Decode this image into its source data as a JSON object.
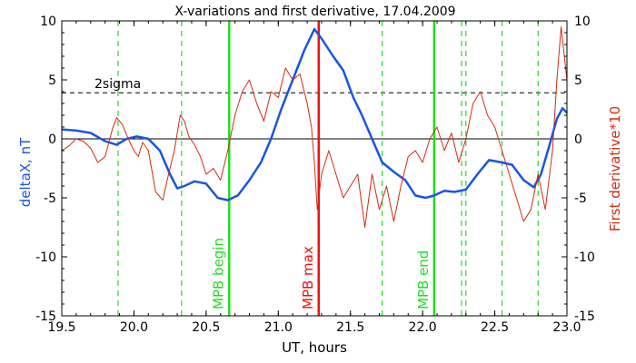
{
  "chart_data": {
    "type": "line",
    "title": "X-variations and first derivative, 17.04.2009",
    "xlabel": "UT, hours",
    "ylabel_left": "deltaX, nT",
    "ylabel_right": "First derivative*10",
    "xlim": [
      19.5,
      23.0
    ],
    "ylim": [
      -15,
      10
    ],
    "x_ticks": [
      "19.5",
      "20.0",
      "20.5",
      "21.0",
      "21.5",
      "22.0",
      "22.5",
      "23.0"
    ],
    "y_ticks_left": [
      "10",
      "5",
      "0",
      "-5",
      "-10",
      "-15"
    ],
    "y_ticks_right": [
      "10",
      "5",
      "0",
      "-5",
      "-10",
      "-15"
    ],
    "sigma_label": "2sigma",
    "sigma_level": 3.9,
    "colors": {
      "deltaX": "#1a55e0",
      "derivative": "#d42a10",
      "markers": "#22dd22",
      "mpb_max": "#ee1111"
    },
    "series": [
      {
        "name": "deltaX, nT",
        "x": [
          19.5,
          19.6,
          19.7,
          19.8,
          19.88,
          19.95,
          20.02,
          20.1,
          20.18,
          20.25,
          20.3,
          20.35,
          20.42,
          20.5,
          20.58,
          20.65,
          20.72,
          20.8,
          20.88,
          20.95,
          21.02,
          21.1,
          21.18,
          21.25,
          21.3,
          21.38,
          21.45,
          21.52,
          21.58,
          21.65,
          21.72,
          21.8,
          21.88,
          21.95,
          22.02,
          22.08,
          22.15,
          22.22,
          22.3,
          22.38,
          22.46,
          22.55,
          22.62,
          22.7,
          22.77,
          22.82,
          22.88,
          22.93,
          22.97,
          23.0
        ],
        "values": [
          0.8,
          0.7,
          0.5,
          -0.2,
          -0.5,
          0.0,
          0.2,
          0.0,
          -1.0,
          -3.0,
          -4.2,
          -4.0,
          -3.6,
          -3.8,
          -5.0,
          -5.2,
          -4.8,
          -3.5,
          -2.0,
          0.0,
          2.5,
          5.0,
          7.5,
          9.3,
          8.5,
          7.0,
          5.8,
          3.5,
          2.0,
          0.0,
          -2.0,
          -2.8,
          -3.5,
          -4.8,
          -5.0,
          -4.8,
          -4.4,
          -4.5,
          -4.3,
          -3.0,
          -1.8,
          -2.0,
          -2.2,
          -3.5,
          -4.1,
          -3.0,
          -0.5,
          1.7,
          2.6,
          2.2
        ]
      },
      {
        "name": "First derivative*10",
        "x": [
          19.5,
          19.55,
          19.6,
          19.65,
          19.7,
          19.75,
          19.8,
          19.85,
          19.88,
          19.92,
          19.95,
          19.98,
          20.0,
          20.03,
          20.06,
          20.1,
          20.15,
          20.2,
          20.23,
          20.28,
          20.32,
          20.35,
          20.38,
          20.42,
          20.46,
          20.5,
          20.55,
          20.6,
          20.65,
          20.7,
          20.75,
          20.8,
          20.85,
          20.9,
          20.95,
          21.0,
          21.05,
          21.1,
          21.15,
          21.2,
          21.23,
          21.25,
          21.27,
          21.3,
          21.35,
          21.4,
          21.45,
          21.5,
          21.55,
          21.6,
          21.65,
          21.7,
          21.75,
          21.8,
          21.85,
          21.9,
          21.95,
          22.0,
          22.05,
          22.1,
          22.15,
          22.2,
          22.25,
          22.3,
          22.35,
          22.4,
          22.45,
          22.5,
          22.55,
          22.6,
          22.65,
          22.7,
          22.75,
          22.8,
          22.85,
          22.9,
          22.93,
          22.96,
          23.0
        ],
        "values": [
          -1.0,
          -0.6,
          0.0,
          -0.2,
          -0.8,
          -2.0,
          -1.5,
          0.8,
          1.8,
          1.2,
          0.3,
          -0.5,
          -1.0,
          -1.5,
          -0.3,
          -1.0,
          -4.5,
          -5.2,
          -3.5,
          -1.0,
          2.0,
          1.5,
          0.2,
          -0.5,
          -1.5,
          -3.0,
          -2.5,
          -3.5,
          -1.0,
          2.0,
          4.0,
          5.0,
          3.0,
          1.5,
          4.0,
          3.5,
          6.0,
          5.0,
          5.5,
          3.0,
          1.0,
          -2.0,
          -6.0,
          -3.0,
          -1.0,
          -3.0,
          -5.0,
          -4.0,
          -3.0,
          -7.5,
          -3.0,
          -6.0,
          -4.0,
          -7.0,
          -4.0,
          -1.5,
          -1.0,
          -2.0,
          0.0,
          1.0,
          -1.0,
          0.5,
          -2.0,
          0.0,
          3.0,
          4.0,
          2.0,
          1.0,
          -1.0,
          -3.0,
          -5.0,
          -7.0,
          -6.0,
          -3.0,
          -6.0,
          -1.0,
          5.0,
          9.5,
          5.0
        ]
      }
    ],
    "dashed_markers": [
      19.89,
      20.33,
      21.72,
      22.27,
      22.3,
      22.55,
      22.8
    ],
    "event_lines": [
      {
        "label": "MPB begin",
        "x": 20.66,
        "color": "#22dd22"
      },
      {
        "label": "MPB max",
        "x": 21.28,
        "color": "#ee1111"
      },
      {
        "label": "MPB end",
        "x": 22.08,
        "color": "#22dd22"
      }
    ],
    "grid": false,
    "legend": "none"
  }
}
